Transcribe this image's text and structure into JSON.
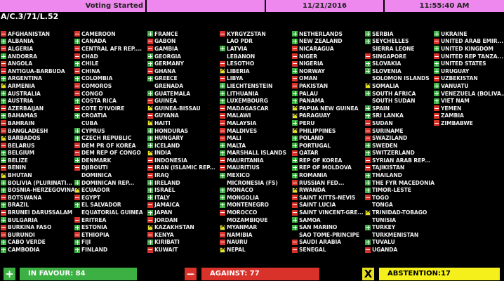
{
  "header": {
    "status": "Voting Started",
    "blank": "",
    "date": "11/21/2016",
    "time": "11:55:40 AM"
  },
  "resolution": "A/C.3/71/L.52",
  "colors": {
    "header": "#ee88ee",
    "yes": "#3cb043",
    "no": "#d8322a",
    "abstain": "#e6e020"
  },
  "vote_codes": {
    "Y": "in favour",
    "N": "against",
    "A": "abstention",
    "": "not voted"
  },
  "columns": [
    [
      [
        "AFGHANISTAN",
        "N"
      ],
      [
        "ALBANIA",
        "Y"
      ],
      [
        "ALGERIA",
        "N"
      ],
      [
        "ANDORRA",
        "Y"
      ],
      [
        "ANGOLA",
        "N"
      ],
      [
        "ANTIGUA-BARBUDA",
        "N"
      ],
      [
        "ARGENTINA",
        "Y"
      ],
      [
        "ARMENIA",
        "A"
      ],
      [
        "AUSTRALIA",
        "Y"
      ],
      [
        "AUSTRIA",
        "Y"
      ],
      [
        "AZERBAIJAN",
        "N"
      ],
      [
        "BAHAMAS",
        "Y"
      ],
      [
        "BAHRAIN",
        "N"
      ],
      [
        "BANGLADESH",
        "N"
      ],
      [
        "BARBADOS",
        "A"
      ],
      [
        "BELARUS",
        "N"
      ],
      [
        "BELGIUM",
        "Y"
      ],
      [
        "BELIZE",
        "Y"
      ],
      [
        "BENIN",
        "N"
      ],
      [
        "BHUTAN",
        "A"
      ],
      [
        "BOLIVIA  (PLURINATI...",
        "Y"
      ],
      [
        "BOSNIA-HERZEGOVINA",
        "Y"
      ],
      [
        "BOTSWANA",
        "N"
      ],
      [
        "BRAZIL",
        "Y"
      ],
      [
        "BRUNEI DARUSSALAM",
        "N"
      ],
      [
        "BULGARIA",
        "Y"
      ],
      [
        "BURKINA FASO",
        "N"
      ],
      [
        "BURUNDI",
        "N"
      ],
      [
        "CABO VERDE",
        "Y"
      ],
      [
        "CAMBODIA",
        "Y"
      ]
    ],
    [
      [
        "CAMEROON",
        "N"
      ],
      [
        "CANADA",
        "Y"
      ],
      [
        "CENTRAL AFR REP....",
        "N"
      ],
      [
        "CHAD",
        "N"
      ],
      [
        "CHILE",
        "Y"
      ],
      [
        "CHINA",
        "N"
      ],
      [
        "COLOMBIA",
        "Y"
      ],
      [
        "COMOROS",
        "N"
      ],
      [
        "CONGO",
        "N"
      ],
      [
        "COSTA RICA",
        "Y"
      ],
      [
        "COTE D'IVOIRE",
        "N"
      ],
      [
        "CROATIA",
        "Y"
      ],
      [
        "CUBA",
        ""
      ],
      [
        "CYPRUS",
        "Y"
      ],
      [
        "CZECH REPUBLIC",
        "Y"
      ],
      [
        "DEM PR OF KOREA",
        "N"
      ],
      [
        "DEM REP OF CONGO",
        "N"
      ],
      [
        "DENMARK",
        "Y"
      ],
      [
        "DJIBOUTI",
        "N"
      ],
      [
        "DOMINICA",
        ""
      ],
      [
        "DOMINICAN REP...",
        "Y"
      ],
      [
        "ECUADOR",
        "A"
      ],
      [
        "EGYPT",
        "N"
      ],
      [
        "EL SALVADOR",
        "Y"
      ],
      [
        "EQUATORIAL GUINEA",
        ""
      ],
      [
        "ERITREA",
        "N"
      ],
      [
        "ESTONIA",
        "Y"
      ],
      [
        "ETHIOPIA",
        "N"
      ],
      [
        "FIJI",
        "Y"
      ],
      [
        "FINLAND",
        "Y"
      ]
    ],
    [
      [
        "FRANCE",
        "Y"
      ],
      [
        "GABON",
        "N"
      ],
      [
        "GAMBIA",
        "N"
      ],
      [
        "GEORGIA",
        "Y"
      ],
      [
        "GERMANY",
        "Y"
      ],
      [
        "GHANA",
        "N"
      ],
      [
        "GREECE",
        "Y"
      ],
      [
        "GRENADA",
        ""
      ],
      [
        "GUATEMALA",
        "Y"
      ],
      [
        "GUINEA",
        "N"
      ],
      [
        "GUINEA-BISSAU",
        "A"
      ],
      [
        "GUYANA",
        "N"
      ],
      [
        "HAITI",
        "A"
      ],
      [
        "HONDURAS",
        "Y"
      ],
      [
        "HUNGARY",
        "Y"
      ],
      [
        "ICELAND",
        "Y"
      ],
      [
        "INDIA",
        "A"
      ],
      [
        "INDONESIA",
        "N"
      ],
      [
        "IRAN (ISLAMIC REP...",
        "N"
      ],
      [
        "IRAQ",
        "N"
      ],
      [
        "IRELAND",
        "Y"
      ],
      [
        "ISRAEL",
        "Y"
      ],
      [
        "ITALY",
        "Y"
      ],
      [
        "JAMAICA",
        "N"
      ],
      [
        "JAPAN",
        "Y"
      ],
      [
        "JORDAN",
        "N"
      ],
      [
        "KAZAKHSTAN",
        "A"
      ],
      [
        "KENYA",
        "N"
      ],
      [
        "KIRIBATI",
        "Y"
      ],
      [
        "KUWAIT",
        "N"
      ]
    ],
    [
      [
        "KYRGYZSTAN",
        "N"
      ],
      [
        "LAO PDR",
        ""
      ],
      [
        "LATVIA",
        "Y"
      ],
      [
        "LEBANON",
        ""
      ],
      [
        "LESOTHO",
        "N"
      ],
      [
        "LIBERIA",
        "A"
      ],
      [
        "LIBYA",
        "N"
      ],
      [
        "LIECHTENSTEIN",
        "Y"
      ],
      [
        "LITHUANIA",
        "Y"
      ],
      [
        "LUXEMBOURG",
        "Y"
      ],
      [
        "MADAGASCAR",
        "N"
      ],
      [
        "MALAWI",
        "N"
      ],
      [
        "MALAYSIA",
        "N"
      ],
      [
        "MALDIVES",
        "N"
      ],
      [
        "MALI",
        "N"
      ],
      [
        "MALTA",
        "Y"
      ],
      [
        "MARSHALL ISLANDS",
        "Y"
      ],
      [
        "MAURITANIA",
        "N"
      ],
      [
        "MAURITIUS",
        "N"
      ],
      [
        "MEXICO",
        "Y"
      ],
      [
        "MICRONESIA (FS)",
        ""
      ],
      [
        "MONACO",
        "Y"
      ],
      [
        "MONGOLIA",
        "Y"
      ],
      [
        "MONTENEGRO",
        "Y"
      ],
      [
        "MOROCCO",
        "N"
      ],
      [
        "MOZAMBIQUE",
        ""
      ],
      [
        "MYANMAR",
        "A"
      ],
      [
        "NAMIBIA",
        "N"
      ],
      [
        "NAURU",
        "N"
      ],
      [
        "NEPAL",
        "A"
      ]
    ],
    [
      [
        "NETHERLANDS",
        "Y"
      ],
      [
        "NEW ZEALAND",
        "Y"
      ],
      [
        "NICARAGUA",
        "N"
      ],
      [
        "NIGER",
        "N"
      ],
      [
        "NIGERIA",
        "N"
      ],
      [
        "NORWAY",
        "Y"
      ],
      [
        "OMAN",
        "N"
      ],
      [
        "PAKISTAN",
        "N"
      ],
      [
        "PALAU",
        "Y"
      ],
      [
        "PANAMA",
        "Y"
      ],
      [
        "PAPUA NEW GUINEA",
        "A"
      ],
      [
        "PARAGUAY",
        "A"
      ],
      [
        "PERU",
        "Y"
      ],
      [
        "PHILIPPINES",
        "A"
      ],
      [
        "POLAND",
        "Y"
      ],
      [
        "PORTUGAL",
        "Y"
      ],
      [
        "QATAR",
        "N"
      ],
      [
        "REP OF KOREA",
        "Y"
      ],
      [
        "REP OF MOLDOVA",
        "Y"
      ],
      [
        "ROMANIA",
        "Y"
      ],
      [
        "RUSSIAN FED...",
        "N"
      ],
      [
        "RWANDA",
        "A"
      ],
      [
        "SAINT KITTS-NEVIS",
        "N"
      ],
      [
        "SAINT LUCIA",
        "N"
      ],
      [
        "SAINT VINCENT-GRE...",
        "N"
      ],
      [
        "SAMOA",
        "Y"
      ],
      [
        "SAN MARINO",
        "Y"
      ],
      [
        "SAO TOME-PRINCIPE",
        ""
      ],
      [
        "SAUDI ARABIA",
        "N"
      ],
      [
        "SENEGAL",
        "N"
      ]
    ],
    [
      [
        "SERBIA",
        "Y"
      ],
      [
        "SEYCHELLES",
        "Y"
      ],
      [
        "SIERRA LEONE",
        ""
      ],
      [
        "SINGAPORE",
        "N"
      ],
      [
        "SLOVAKIA",
        "Y"
      ],
      [
        "SLOVENIA",
        "Y"
      ],
      [
        "SOLOMON ISLANDS",
        ""
      ],
      [
        "SOMALIA",
        "A"
      ],
      [
        "SOUTH AFRICA",
        "Y"
      ],
      [
        "SOUTH SUDAN",
        ""
      ],
      [
        "SPAIN",
        "Y"
      ],
      [
        "SRI LANKA",
        "Y"
      ],
      [
        "SUDAN",
        "N"
      ],
      [
        "SURINAME",
        "N"
      ],
      [
        "SWAZILAND",
        "N"
      ],
      [
        "SWEDEN",
        "Y"
      ],
      [
        "SWITZERLAND",
        "Y"
      ],
      [
        "SYRIAN ARAB REP...",
        "N"
      ],
      [
        "TAJIKISTAN",
        "N"
      ],
      [
        "THAILAND",
        "Y"
      ],
      [
        "THE FYR MACEDONIA",
        "Y"
      ],
      [
        "TIMOR-LESTE",
        "Y"
      ],
      [
        "TOGO",
        "N"
      ],
      [
        "TONGA",
        ""
      ],
      [
        "TRINIDAD-TOBAGO",
        "A"
      ],
      [
        "TUNISIA",
        ""
      ],
      [
        "TURKEY",
        "Y"
      ],
      [
        "TURKMENISTAN",
        ""
      ],
      [
        "TUVALU",
        "Y"
      ],
      [
        "UGANDA",
        "N"
      ]
    ],
    [
      [
        "UKRAINE",
        "Y"
      ],
      [
        "UNITED ARAB EMIR...",
        "N"
      ],
      [
        "UNITED KINGDOM",
        "Y"
      ],
      [
        "UNITED REP TANZA...",
        "N"
      ],
      [
        "UNITED STATES",
        "Y"
      ],
      [
        "URUGUAY",
        "Y"
      ],
      [
        "UZBEKISTAN",
        "N"
      ],
      [
        "VANUATU",
        "Y"
      ],
      [
        "VENEZUELA (BOLIVA...",
        "Y"
      ],
      [
        "VIET NAM",
        "Y"
      ],
      [
        "YEMEN",
        "N"
      ],
      [
        "ZAMBIA",
        "N"
      ],
      [
        "ZIMBABWE",
        "N"
      ]
    ]
  ],
  "totals": {
    "in_favour": "IN FAVOUR: 84",
    "against": "AGAINST: 77",
    "abstention": "ABSTENTION:17",
    "in_favour_icon": "plus-icon",
    "against_icon": "minus-icon",
    "abstention_icon": "x-icon",
    "plus_glyph": "+",
    "minus_glyph": "−",
    "x_glyph": "X"
  }
}
